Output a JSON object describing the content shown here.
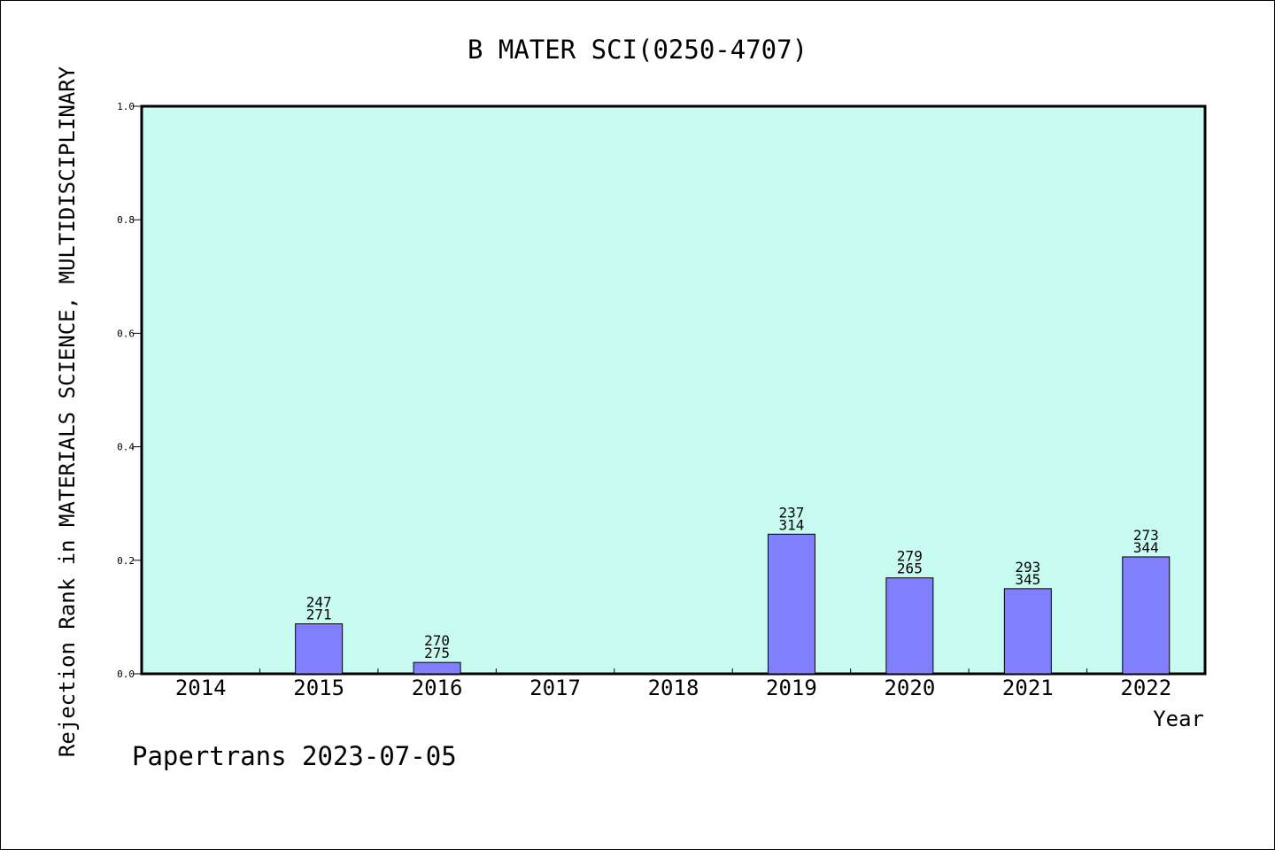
{
  "chart_data": {
    "type": "bar",
    "title": "B MATER SCI(0250-4707)",
    "xlabel": "Year",
    "ylabel": "Rejection Rank in MATERIALS SCIENCE, MULTIDISCIPLINARY",
    "ylim": [
      0.0,
      1.0
    ],
    "yticks": [
      "0.0",
      "0.2",
      "0.4",
      "0.6",
      "0.8",
      "1.0"
    ],
    "categories": [
      "2014",
      "2015",
      "2016",
      "2017",
      "2018",
      "2019",
      "2020",
      "2021",
      "2022"
    ],
    "values": [
      null,
      0.088,
      0.02,
      null,
      null,
      0.246,
      0.169,
      0.15,
      0.206
    ],
    "data_labels": [
      null,
      [
        "247",
        "271"
      ],
      [
        "270",
        "275"
      ],
      null,
      null,
      [
        "237",
        "314"
      ],
      [
        "279",
        "265"
      ],
      [
        "293",
        "345"
      ],
      [
        "273",
        "344"
      ]
    ],
    "grid": false,
    "legend": "none"
  },
  "footer": "Papertrans 2023-07-05",
  "colors": {
    "plot_background": "#c8fcf0",
    "bar_fill": "#8080ff",
    "bar_edge": "#000000",
    "axis": "#000000"
  }
}
